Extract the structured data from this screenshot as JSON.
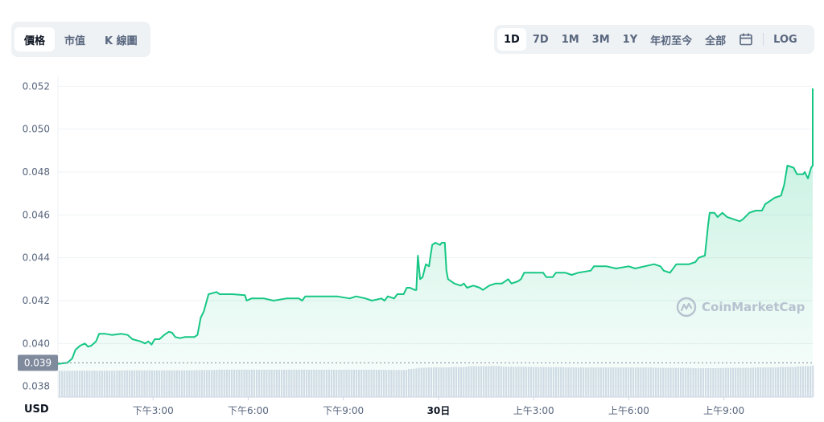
{
  "view_tabs": [
    "價格",
    "市值",
    "K 線圖"
  ],
  "view_active": 0,
  "range_tabs": [
    "1D",
    "7D",
    "1M",
    "3M",
    "1Y",
    "年初至今",
    "全部"
  ],
  "range_active": 0,
  "calendar_icon": "calendar-icon",
  "log_label": "LOG",
  "currency_label": "USD",
  "watermark": "CoinMarketCap",
  "colors": {
    "line": "#16c784",
    "area": "#16c784",
    "volume": "#cfd6e4",
    "marker": "#808a9d"
  },
  "chart_data": {
    "type": "area",
    "title": "",
    "xlabel": "",
    "ylabel": "",
    "ylim": [
      0.0375,
      0.0525
    ],
    "y_ticks": [
      "0.038",
      "0.040",
      "0.042",
      "0.044",
      "0.046",
      "0.048",
      "0.050",
      "0.052"
    ],
    "x_ticks": [
      {
        "label": "下午3:00",
        "t": 3
      },
      {
        "label": "下午6:00",
        "t": 6
      },
      {
        "label": "下午9:00",
        "t": 9
      },
      {
        "label": "30日",
        "t": 12,
        "bold": true
      },
      {
        "label": "上午3:00",
        "t": 15
      },
      {
        "label": "上午6:00",
        "t": 18
      },
      {
        "label": "上午9:00",
        "t": 21
      }
    ],
    "x_range": [
      0.0,
      23.8
    ],
    "open_price_label": "0.039",
    "open_price": 0.0391,
    "price": [
      [
        0.0,
        0.03905
      ],
      [
        0.3,
        0.0391
      ],
      [
        0.45,
        0.0393
      ],
      [
        0.55,
        0.0397
      ],
      [
        0.7,
        0.0399
      ],
      [
        0.85,
        0.04
      ],
      [
        0.95,
        0.03985
      ],
      [
        1.05,
        0.0399
      ],
      [
        1.2,
        0.0401
      ],
      [
        1.3,
        0.04045
      ],
      [
        1.5,
        0.04045
      ],
      [
        1.7,
        0.0404
      ],
      [
        2.0,
        0.04045
      ],
      [
        2.2,
        0.0404
      ],
      [
        2.35,
        0.0402
      ],
      [
        2.6,
        0.0401
      ],
      [
        2.75,
        0.04
      ],
      [
        2.85,
        0.0401
      ],
      [
        2.95,
        0.03995
      ],
      [
        3.05,
        0.0402
      ],
      [
        3.2,
        0.0402
      ],
      [
        3.35,
        0.0404
      ],
      [
        3.5,
        0.04055
      ],
      [
        3.6,
        0.0405
      ],
      [
        3.7,
        0.0403
      ],
      [
        3.85,
        0.04025
      ],
      [
        4.0,
        0.0403
      ],
      [
        4.3,
        0.0403
      ],
      [
        4.4,
        0.0404
      ],
      [
        4.5,
        0.0412
      ],
      [
        4.6,
        0.0415
      ],
      [
        4.75,
        0.0423
      ],
      [
        5.0,
        0.0424
      ],
      [
        5.1,
        0.0423
      ],
      [
        5.5,
        0.0423
      ],
      [
        5.9,
        0.04225
      ],
      [
        5.95,
        0.042
      ],
      [
        6.1,
        0.0421
      ],
      [
        6.5,
        0.0421
      ],
      [
        6.8,
        0.042
      ],
      [
        7.2,
        0.0421
      ],
      [
        7.6,
        0.0421
      ],
      [
        7.7,
        0.042
      ],
      [
        7.8,
        0.0422
      ],
      [
        8.2,
        0.0422
      ],
      [
        8.5,
        0.0422
      ],
      [
        8.8,
        0.0422
      ],
      [
        9.2,
        0.0421
      ],
      [
        9.4,
        0.0422
      ],
      [
        9.7,
        0.0421
      ],
      [
        9.9,
        0.042
      ],
      [
        10.2,
        0.0421
      ],
      [
        10.3,
        0.042
      ],
      [
        10.4,
        0.0422
      ],
      [
        10.6,
        0.0421
      ],
      [
        10.7,
        0.0423
      ],
      [
        10.9,
        0.0423
      ],
      [
        11.0,
        0.0426
      ],
      [
        11.1,
        0.0426
      ],
      [
        11.25,
        0.0425
      ],
      [
        11.3,
        0.0425
      ],
      [
        11.35,
        0.0441
      ],
      [
        11.42,
        0.043
      ],
      [
        11.5,
        0.0431
      ],
      [
        11.6,
        0.0437
      ],
      [
        11.7,
        0.0436
      ],
      [
        11.8,
        0.0446
      ],
      [
        11.9,
        0.0447
      ],
      [
        12.05,
        0.0446
      ],
      [
        12.1,
        0.0447
      ],
      [
        12.2,
        0.0447
      ],
      [
        12.25,
        0.0434
      ],
      [
        12.3,
        0.043
      ],
      [
        12.5,
        0.0428
      ],
      [
        12.7,
        0.0427
      ],
      [
        12.8,
        0.0428
      ],
      [
        12.9,
        0.0426
      ],
      [
        13.1,
        0.0427
      ],
      [
        13.3,
        0.0426
      ],
      [
        13.4,
        0.0425
      ],
      [
        13.6,
        0.0427
      ],
      [
        13.8,
        0.0428
      ],
      [
        14.0,
        0.0428
      ],
      [
        14.2,
        0.043
      ],
      [
        14.3,
        0.0428
      ],
      [
        14.5,
        0.0429
      ],
      [
        14.6,
        0.043
      ],
      [
        14.7,
        0.0433
      ],
      [
        15.0,
        0.0433
      ],
      [
        15.3,
        0.0433
      ],
      [
        15.4,
        0.0431
      ],
      [
        15.6,
        0.0431
      ],
      [
        15.7,
        0.0433
      ],
      [
        16.0,
        0.0433
      ],
      [
        16.2,
        0.0432
      ],
      [
        16.4,
        0.0433
      ],
      [
        16.8,
        0.0434
      ],
      [
        16.9,
        0.0436
      ],
      [
        17.3,
        0.0436
      ],
      [
        17.6,
        0.0435
      ],
      [
        18.0,
        0.0436
      ],
      [
        18.2,
        0.0435
      ],
      [
        18.5,
        0.0436
      ],
      [
        18.8,
        0.0437
      ],
      [
        19.0,
        0.0436
      ],
      [
        19.1,
        0.0434
      ],
      [
        19.3,
        0.0433
      ],
      [
        19.5,
        0.0437
      ],
      [
        19.7,
        0.0437
      ],
      [
        19.9,
        0.0437
      ],
      [
        20.1,
        0.0438
      ],
      [
        20.2,
        0.044
      ],
      [
        20.4,
        0.0441
      ],
      [
        20.5,
        0.0455
      ],
      [
        20.55,
        0.0461
      ],
      [
        20.7,
        0.0461
      ],
      [
        20.8,
        0.0459
      ],
      [
        20.95,
        0.0461
      ],
      [
        21.1,
        0.0459
      ],
      [
        21.3,
        0.0458
      ],
      [
        21.5,
        0.0457
      ],
      [
        21.6,
        0.0458
      ],
      [
        21.8,
        0.0461
      ],
      [
        22.0,
        0.0462
      ],
      [
        22.2,
        0.0462
      ],
      [
        22.3,
        0.0465
      ],
      [
        22.5,
        0.0467
      ],
      [
        22.6,
        0.0468
      ],
      [
        22.8,
        0.0469
      ],
      [
        22.9,
        0.0474
      ],
      [
        23.0,
        0.0483
      ],
      [
        23.2,
        0.0482
      ],
      [
        23.3,
        0.0479
      ],
      [
        23.5,
        0.0479
      ],
      [
        23.55,
        0.048
      ],
      [
        23.65,
        0.0477
      ],
      [
        23.75,
        0.0482
      ],
      [
        23.85,
        0.0483
      ],
      [
        23.9,
        0.0487
      ],
      [
        23.95,
        0.0491
      ],
      [
        24.0,
        0.05
      ],
      [
        24.05,
        0.0501
      ],
      [
        24.1,
        0.0519
      ]
    ],
    "volume": [
      [
        0.0,
        0.28
      ],
      [
        2.0,
        0.29
      ],
      [
        4.5,
        0.3
      ],
      [
        5.0,
        0.31
      ],
      [
        10.7,
        0.3
      ],
      [
        11.0,
        0.33
      ],
      [
        11.3,
        0.36
      ],
      [
        11.6,
        0.37
      ],
      [
        12.4,
        0.38
      ],
      [
        12.9,
        0.4
      ],
      [
        13.6,
        0.41
      ],
      [
        14.0,
        0.39
      ],
      [
        15.0,
        0.38
      ],
      [
        16.0,
        0.37
      ],
      [
        19.0,
        0.36
      ],
      [
        20.0,
        0.35
      ],
      [
        21.0,
        0.36
      ],
      [
        22.0,
        0.37
      ],
      [
        22.8,
        0.38
      ],
      [
        23.3,
        0.4
      ],
      [
        23.8,
        0.43
      ],
      [
        24.1,
        0.46
      ]
    ],
    "grid": true
  }
}
